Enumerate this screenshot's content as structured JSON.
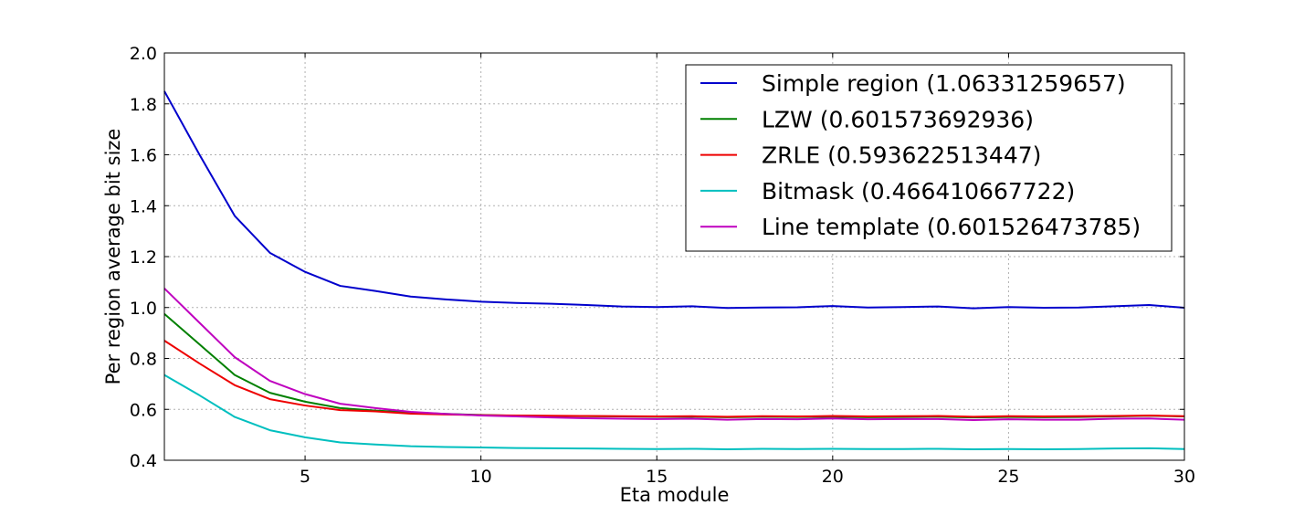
{
  "chart_data": {
    "type": "line",
    "xlabel": "Eta module",
    "ylabel": "Per region average bit size",
    "xlim": [
      1,
      30
    ],
    "ylim": [
      0.4,
      2.0
    ],
    "x_ticks": [
      5,
      10,
      15,
      20,
      25,
      30
    ],
    "y_ticks": [
      0.4,
      0.6,
      0.8,
      1.0,
      1.2,
      1.4,
      1.6,
      1.8,
      2.0
    ],
    "y_tick_labels": [
      "0.4",
      "0.6",
      "0.8",
      "1.0",
      "1.2",
      "1.4",
      "1.6",
      "1.8",
      "2.0"
    ],
    "grid": true,
    "legend_position": "top-right",
    "x": [
      1,
      2,
      3,
      4,
      5,
      6,
      7,
      8,
      9,
      10,
      11,
      12,
      13,
      14,
      15,
      16,
      17,
      18,
      19,
      20,
      21,
      22,
      23,
      24,
      25,
      26,
      27,
      28,
      29,
      30
    ],
    "series": [
      {
        "name": "Simple region (1.06331259657)",
        "color": "#0000cc",
        "values": [
          1.85,
          1.6,
          1.36,
          1.215,
          1.14,
          1.085,
          1.065,
          1.043,
          1.032,
          1.023,
          1.018,
          1.015,
          1.01,
          1.004,
          1.002,
          1.005,
          0.998,
          1.0,
          1.001,
          1.006,
          1.0,
          1.002,
          1.004,
          0.997,
          1.002,
          0.999,
          1.0,
          1.005,
          1.01,
          0.999
        ]
      },
      {
        "name": "LZW (0.601573692936)",
        "color": "#008000",
        "values": [
          0.975,
          0.855,
          0.735,
          0.665,
          0.63,
          0.605,
          0.595,
          0.588,
          0.582,
          0.578,
          0.575,
          0.574,
          0.573,
          0.572,
          0.571,
          0.571,
          0.569,
          0.571,
          0.57,
          0.571,
          0.569,
          0.57,
          0.571,
          0.568,
          0.57,
          0.569,
          0.57,
          0.572,
          0.575,
          0.572
        ]
      },
      {
        "name": "ZRLE (0.593622513447)",
        "color": "#ee0000",
        "values": [
          0.87,
          0.78,
          0.695,
          0.64,
          0.615,
          0.597,
          0.592,
          0.583,
          0.58,
          0.577,
          0.576,
          0.575,
          0.574,
          0.573,
          0.572,
          0.573,
          0.571,
          0.573,
          0.572,
          0.574,
          0.572,
          0.573,
          0.574,
          0.571,
          0.573,
          0.572,
          0.573,
          0.574,
          0.576,
          0.573
        ]
      },
      {
        "name": "Bitmask (0.466410667722)",
        "color": "#00bfbf",
        "values": [
          0.735,
          0.655,
          0.57,
          0.518,
          0.49,
          0.47,
          0.462,
          0.455,
          0.452,
          0.45,
          0.448,
          0.447,
          0.446,
          0.445,
          0.444,
          0.445,
          0.443,
          0.445,
          0.444,
          0.445,
          0.444,
          0.444,
          0.445,
          0.443,
          0.444,
          0.443,
          0.444,
          0.446,
          0.447,
          0.444
        ]
      },
      {
        "name": "Line template (0.601526473785)",
        "color": "#bf00bf",
        "values": [
          1.075,
          0.94,
          0.805,
          0.712,
          0.66,
          0.622,
          0.605,
          0.59,
          0.582,
          0.576,
          0.572,
          0.568,
          0.565,
          0.563,
          0.562,
          0.563,
          0.559,
          0.562,
          0.561,
          0.564,
          0.561,
          0.562,
          0.562,
          0.558,
          0.561,
          0.559,
          0.559,
          0.563,
          0.564,
          0.559
        ]
      }
    ]
  }
}
